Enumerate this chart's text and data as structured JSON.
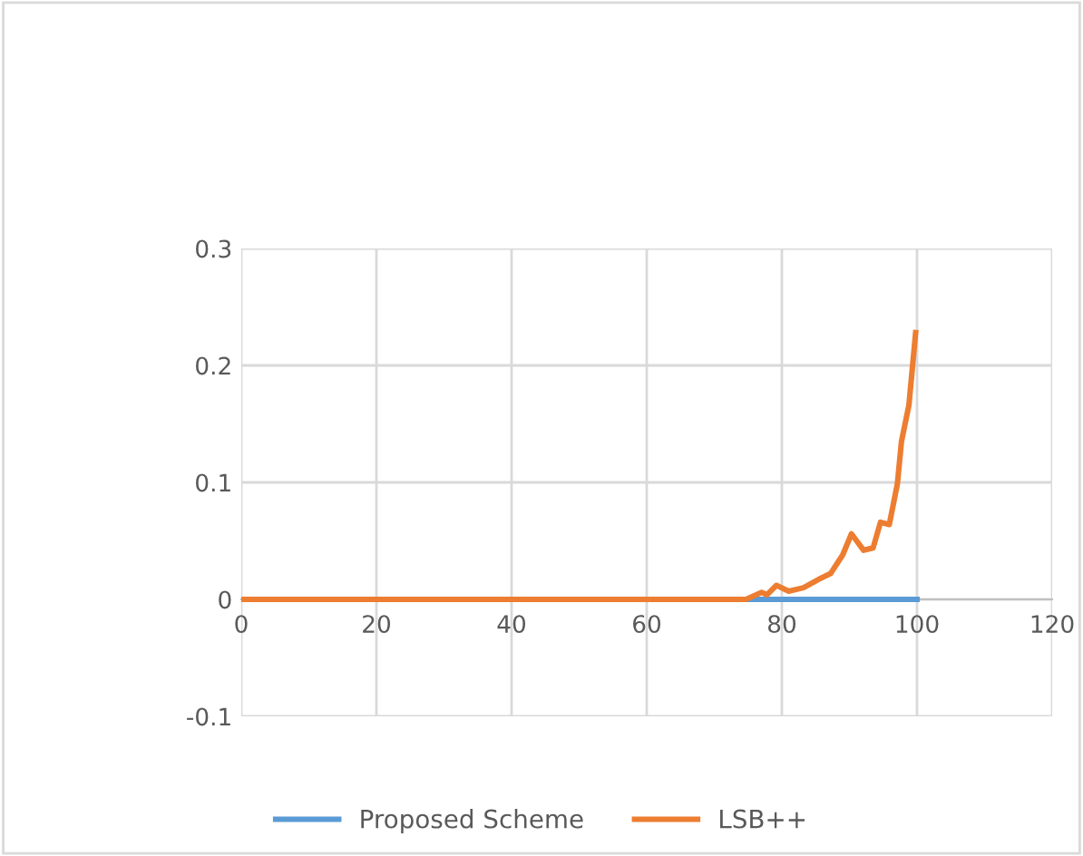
{
  "chart_data": {
    "type": "line",
    "series": [
      {
        "name": "Proposed Scheme",
        "color": "#5b9bd5",
        "x": [
          74.7,
          80,
          90,
          100
        ],
        "values": [
          0,
          0,
          0,
          0
        ]
      },
      {
        "name": "LSB++",
        "color": "#ed7d31",
        "x": [
          0,
          10,
          20,
          30,
          40,
          50,
          60,
          70,
          74.7,
          77,
          77.8,
          79.2,
          81,
          83.2,
          85.4,
          87.2,
          89,
          90.3,
          92.1,
          93.5,
          94.6,
          95.9,
          97.1,
          97.7,
          98.8,
          99.8
        ],
        "values": [
          0,
          0,
          0,
          0,
          0,
          0,
          0,
          0,
          0,
          0.006,
          0.004,
          0.012,
          0.007,
          0.01,
          0.017,
          0.022,
          0.038,
          0.056,
          0.042,
          0.044,
          0.066,
          0.064,
          0.099,
          0.135,
          0.166,
          0.228
        ]
      }
    ],
    "xlim": [
      0,
      120
    ],
    "xticks": [
      0,
      20,
      40,
      60,
      80,
      100,
      120
    ],
    "ylim": [
      -0.1,
      0.3
    ],
    "yticks": [
      -0.1,
      0,
      0.1,
      0.2,
      0.3
    ],
    "grid": true,
    "legend": "bottom",
    "marker": "none",
    "line_style": "solid"
  }
}
